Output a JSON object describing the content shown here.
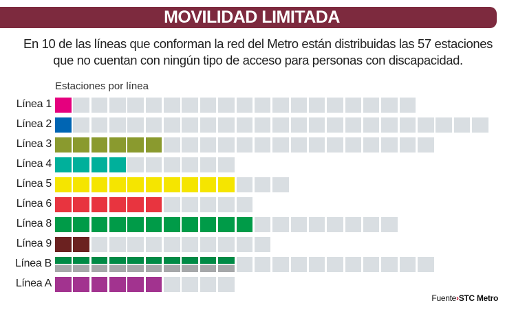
{
  "title": "MOVILIDAD LIMITADA",
  "subtitle_line1": "En 10 de las líneas que conforman la red del Metro están distribuidas las 57 estaciones",
  "subtitle_line2": "que no cuentan con ningún tipo de acceso para personas con discapacidad.",
  "source_label": "Fuente",
  "source_name": "STC Metro",
  "chart_data": {
    "type": "waffle",
    "ylabel": "Estaciones por línea",
    "background_color": "#d9dee2",
    "rows": [
      {
        "label": "Línea 1",
        "without_access": 1,
        "total": 20,
        "color": "#e5007e"
      },
      {
        "label": "Línea 2",
        "without_access": 1,
        "total": 24,
        "color": "#0065b3"
      },
      {
        "label": "Línea 3",
        "without_access": 6,
        "total": 21,
        "color": "#8a9a2e"
      },
      {
        "label": "Línea 4",
        "without_access": 4,
        "total": 10,
        "color": "#00b09b"
      },
      {
        "label": "Línea 5",
        "without_access": 10,
        "total": 13,
        "color": "#f5e500"
      },
      {
        "label": "Línea 6",
        "without_access": 6,
        "total": 11,
        "color": "#e8343f"
      },
      {
        "label": "Línea 8",
        "without_access": 11,
        "total": 19,
        "color": "#009b48"
      },
      {
        "label": "Línea 9",
        "without_access": 2,
        "total": 12,
        "color": "#6b2120"
      },
      {
        "label": "Línea B",
        "without_access": 10,
        "total": 21,
        "color": "#008a45",
        "color2": "#a6a8aa"
      },
      {
        "label": "Línea A",
        "without_access": 6,
        "total": 10,
        "color": "#a2338f"
      }
    ]
  }
}
